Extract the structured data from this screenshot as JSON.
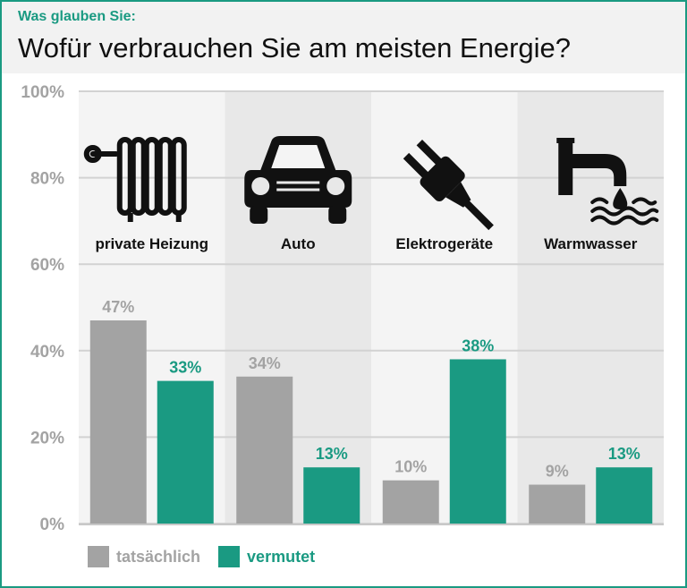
{
  "header": {
    "kicker": "Was glauben Sie:",
    "title": "Wofür verbrauchen Sie am meisten Energie?"
  },
  "legend": {
    "actual_label": "tatsächlich",
    "assumed_label": "vermutet"
  },
  "colors": {
    "actual": "#a3a3a3",
    "assumed": "#1a9a82",
    "frame": "#1a9a82"
  },
  "chart_data": {
    "type": "bar",
    "categories": [
      "private Heizung",
      "Auto",
      "Elektrogeräte",
      "Warmwasser"
    ],
    "category_icons": [
      "radiator-icon",
      "car-icon",
      "plug-icon",
      "water-tap-icon"
    ],
    "series": [
      {
        "name": "tatsächlich",
        "values": [
          47,
          34,
          10,
          9
        ],
        "labels": [
          "47%",
          "34%",
          "10%",
          "9%"
        ]
      },
      {
        "name": "vermutet",
        "values": [
          33,
          13,
          38,
          13
        ],
        "labels": [
          "33%",
          "13%",
          "38%",
          "13%"
        ]
      }
    ],
    "ylim": [
      0,
      100
    ],
    "yticks": [
      "0%",
      "20%",
      "40%",
      "60%",
      "80%",
      "100%"
    ],
    "ytick_values": [
      0,
      20,
      40,
      60,
      80,
      100
    ],
    "legend_position": "bottom-left",
    "grid": true
  }
}
